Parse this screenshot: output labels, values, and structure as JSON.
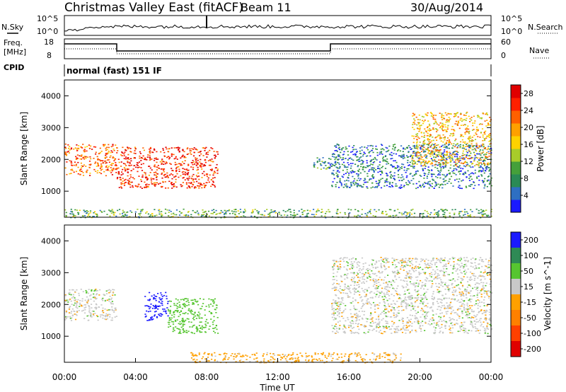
{
  "header": {
    "station": "Christmas Valley East (fitACF)",
    "beam": "Beam 11",
    "date": "30/Aug/2014"
  },
  "summary_panels": {
    "nsky_label": "N.Sky",
    "nsearch_label": "N.Search",
    "noise_ticks": [
      "10^5",
      "10^0"
    ],
    "freq_label": "Freq.",
    "freq_unit": "[MHz]",
    "freq_ticks": [
      "18",
      "8"
    ],
    "nave_label": "Nave",
    "nave_ticks": [
      "60",
      "0"
    ],
    "cpid_label": "CPID",
    "cpid_value": "normal (fast) 151 IF"
  },
  "chart_data": [
    {
      "type": "heatmap",
      "title": "",
      "quantity": "Power",
      "ylabel": "Slant Range [km]",
      "xlabel": "Time UT",
      "x_ticks": [
        "00:00",
        "04:00",
        "08:00",
        "12:00",
        "16:00",
        "20:00",
        "00:00"
      ],
      "y_ticks": [
        1000,
        2000,
        3000,
        4000
      ],
      "xlim": [
        0,
        24
      ],
      "ylim": [
        180,
        4500
      ],
      "colorbar": {
        "label": "Power [dB]",
        "ticks": [
          4,
          8,
          12,
          16,
          20,
          24,
          28
        ],
        "range": [
          0,
          30
        ],
        "colors": [
          "#1a1aff",
          "#2e6fc2",
          "#2a8a55",
          "#45a03a",
          "#a8cc2a",
          "#ffd200",
          "#ffa000",
          "#ff6000",
          "#ff2000",
          "#e00000"
        ]
      },
      "echo_regions": [
        {
          "t_start": 0.0,
          "t_end": 2.9,
          "range_start": 1500,
          "range_end": 2500,
          "power_db": 22
        },
        {
          "t_start": 2.9,
          "t_end": 8.6,
          "range_start": 1100,
          "range_end": 2400,
          "power_db": 26
        },
        {
          "t_start": 13.9,
          "t_end": 15.0,
          "range_start": 1700,
          "range_end": 2100,
          "power_db": 8
        },
        {
          "t_start": 15.0,
          "t_end": 24.0,
          "range_start": 1100,
          "range_end": 2500,
          "power_db": 6
        },
        {
          "t_start": 19.5,
          "t_end": 24.0,
          "range_start": 1800,
          "range_end": 3500,
          "power_db": 18
        },
        {
          "t_start": 0.0,
          "t_end": 24.0,
          "range_start": 180,
          "range_end": 450,
          "power_db": 10
        }
      ]
    },
    {
      "type": "heatmap",
      "title": "",
      "quantity": "Velocity",
      "ylabel": "Slant Range [km]",
      "xlabel": "Time UT",
      "x_ticks": [
        "00:00",
        "04:00",
        "08:00",
        "12:00",
        "16:00",
        "20:00",
        "00:00"
      ],
      "y_ticks": [
        1000,
        2000,
        3000,
        4000
      ],
      "xlim": [
        0,
        24
      ],
      "ylim": [
        180,
        4500
      ],
      "colorbar": {
        "label": "Velocity [m s^-1]",
        "ticks": [
          200,
          100,
          50,
          15,
          -15,
          -50,
          -100,
          -200
        ],
        "colors": [
          "#1a1aff",
          "#2e8a55",
          "#56c530",
          "#c8c8c8",
          "#ffa000",
          "#ff8000",
          "#ff4000",
          "#e00000"
        ]
      },
      "echo_regions": [
        {
          "t_start": 0.0,
          "t_end": 2.9,
          "range_start": 1500,
          "range_end": 2500,
          "velocity": 0
        },
        {
          "t_start": 4.5,
          "t_end": 5.8,
          "range_start": 1500,
          "range_end": 2400,
          "velocity": 200
        },
        {
          "t_start": 5.8,
          "t_end": 8.6,
          "range_start": 1100,
          "range_end": 2200,
          "velocity": 50
        },
        {
          "t_start": 15.0,
          "t_end": 24.0,
          "range_start": 1100,
          "range_end": 3500,
          "velocity": 0
        },
        {
          "t_start": 7.0,
          "t_end": 19.0,
          "range_start": 180,
          "range_end": 500,
          "velocity": -30
        }
      ]
    }
  ]
}
